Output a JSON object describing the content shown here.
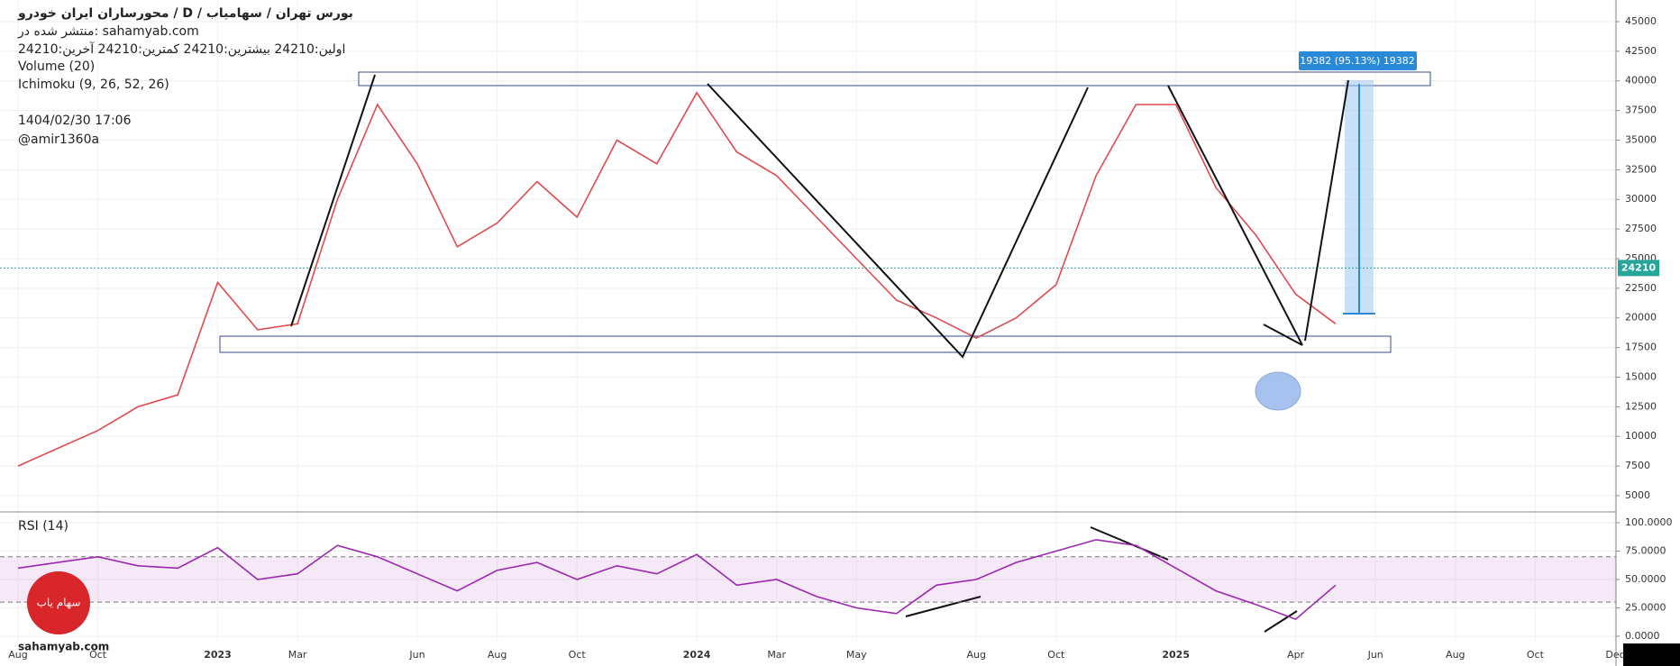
{
  "chart_data": [
    {
      "type": "line",
      "title": "محورساران ایران خودرو /  D /  بورس تهران / سهامیاب",
      "annotations": [
        "منتشر شده در: sahamyab.com",
        "اولین:24210  بیشترین:24210  کمترین:24210  آخرین:24210",
        "Volume (20)",
        "Ichimoku (9, 26, 52, 26)",
        "1404/02/30 17:06",
        "@amir1360a"
      ],
      "watermark": "sahamyab.com",
      "logo": "سهام یاب",
      "measure_label": "19382 (95.13%) 19382",
      "last_price": 24210,
      "categories": [
        "Aug",
        null,
        "Oct",
        null,
        null,
        "2023",
        null,
        "Mar",
        null,
        null,
        "Jun",
        null,
        "Aug",
        null,
        "Oct",
        null,
        null,
        "2024",
        null,
        "Mar",
        null,
        "May",
        null,
        null,
        "Aug",
        null,
        "Oct",
        null,
        null,
        "2025",
        null,
        null,
        "Apr",
        null,
        "Jun",
        null,
        "Aug",
        null,
        "Oct",
        null,
        "Dec"
      ],
      "values": [
        7500,
        9000,
        10500,
        12500,
        13500,
        23000,
        19000,
        19500,
        30000,
        38000,
        33000,
        26000,
        28000,
        31500,
        28500,
        35000,
        33000,
        39000,
        34000,
        32000,
        28500,
        25000,
        21500,
        20000,
        18300,
        20000,
        22800,
        32000,
        38000,
        38000,
        31000,
        27000,
        22000,
        19500,
        null,
        null,
        null,
        null,
        null,
        null,
        null
      ],
      "color": "#e04a4f",
      "ylim": [
        3631,
        46825
      ],
      "yticks": [
        5000,
        7500,
        10000,
        12500,
        15000,
        17500,
        20000,
        22500,
        25000,
        27500,
        30000,
        32500,
        35000,
        37500,
        40000,
        42500,
        45000
      ],
      "grid": true
    },
    {
      "type": "line",
      "title": "RSI (14)",
      "values": [
        60,
        65,
        70,
        62,
        60,
        78,
        50,
        55,
        80,
        70,
        55,
        40,
        58,
        65,
        50,
        62,
        55,
        72,
        45,
        50,
        35,
        25,
        20,
        45,
        50,
        65,
        75,
        85,
        80,
        60,
        40,
        28,
        15,
        45,
        null,
        null,
        null,
        null,
        null,
        null,
        null
      ],
      "color": "#9c27b0",
      "band": [
        30,
        70
      ],
      "ylim": [
        -4.8,
        109.5
      ],
      "yticks": [
        {
          "value": 0,
          "label": "0.0000"
        },
        {
          "value": 25,
          "label": "25.0000"
        },
        {
          "value": 50,
          "label": "50.0000"
        },
        {
          "value": 75,
          "label": "75.0000"
        },
        {
          "value": 100,
          "label": "100.0000"
        }
      ],
      "grid": true
    }
  ]
}
